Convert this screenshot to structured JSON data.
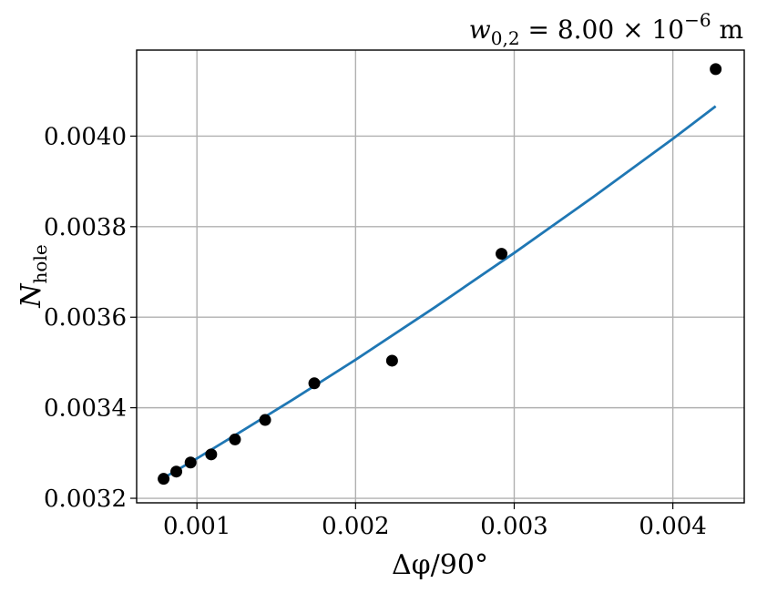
{
  "chart_data": {
    "type": "scatter",
    "title": "w_{0,2} = 8.00 × 10^{-6} m",
    "title_parts": {
      "main": "w",
      "sub": "0,2",
      "eq": " = 8.00 × 10",
      "sup": "−6",
      "unit": " m"
    },
    "xlabel": "Δφ/90°",
    "ylabel": "N",
    "ylabel_sub": "hole",
    "xlim": [
      0.00062,
      0.00445
    ],
    "ylim": [
      0.00319,
      0.00419
    ],
    "grid": true,
    "x_ticks": [
      0.001,
      0.002,
      0.003,
      0.004
    ],
    "x_tick_labels": [
      "0.001",
      "0.002",
      "0.003",
      "0.004"
    ],
    "y_ticks": [
      0.0032,
      0.0034,
      0.0036,
      0.0038,
      0.004
    ],
    "y_tick_labels": [
      "0.0032",
      "0.0034",
      "0.0036",
      "0.0038",
      "0.0040"
    ],
    "series": [
      {
        "type": "scatter",
        "color": "#000000",
        "x": [
          0.00079,
          0.00087,
          0.00096,
          0.00109,
          0.00124,
          0.00143,
          0.00174,
          0.00223,
          0.00292,
          0.00427
        ],
        "y": [
          0.003243,
          0.003259,
          0.003279,
          0.003297,
          0.00333,
          0.003373,
          0.003454,
          0.003504,
          0.00374,
          0.004148
        ]
      },
      {
        "type": "line",
        "color": "#1f77b4",
        "x": [
          0.00079,
          0.001,
          0.0013,
          0.0016,
          0.002,
          0.0025,
          0.003,
          0.0035,
          0.004,
          0.00427
        ],
        "y": [
          0.003245,
          0.003288,
          0.003352,
          0.003417,
          0.003506,
          0.003622,
          0.003742,
          0.003866,
          0.003994,
          0.004066
        ]
      }
    ]
  }
}
